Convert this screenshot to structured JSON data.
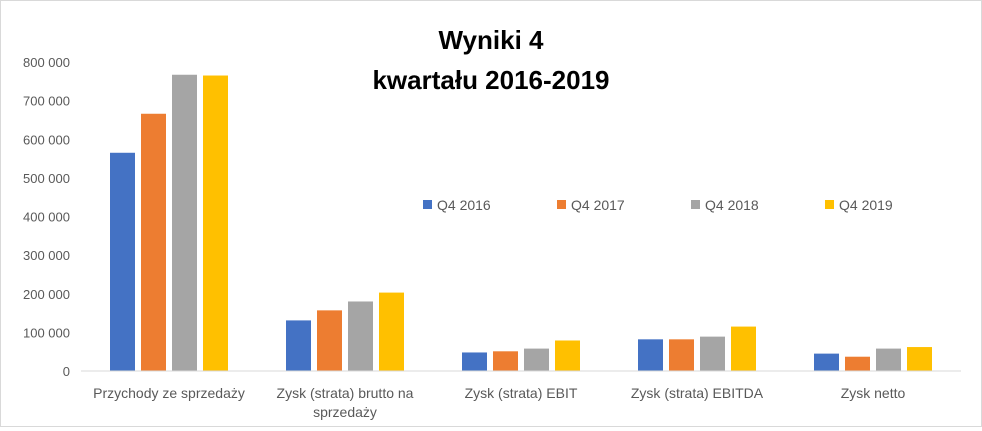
{
  "chart_data": {
    "type": "bar",
    "title_lines": [
      "Wyniki 4",
      "kwartału 2016-2019"
    ],
    "categories": [
      [
        "Przychody ze sprzedaży"
      ],
      [
        "Zysk (strata) brutto na",
        "sprzedaży"
      ],
      [
        "Zysk (strata) EBIT"
      ],
      [
        "Zysk (strata) EBITDA"
      ],
      [
        "Zysk netto"
      ]
    ],
    "series": [
      {
        "name": "Q4 2016",
        "color": "#4472c4",
        "values": [
          565000,
          131000,
          48000,
          82000,
          45000
        ]
      },
      {
        "name": "Q4 2017",
        "color": "#ed7d31",
        "values": [
          666000,
          157000,
          51000,
          82000,
          37000
        ]
      },
      {
        "name": "Q4 2018",
        "color": "#a5a5a5",
        "values": [
          767000,
          180000,
          58000,
          89000,
          58000
        ]
      },
      {
        "name": "Q4 2019",
        "color": "#ffc000",
        "values": [
          765000,
          203000,
          79000,
          115000,
          62000
        ]
      }
    ],
    "ylim": [
      0,
      800000
    ],
    "yticks": [
      0,
      100000,
      200000,
      300000,
      400000,
      500000,
      600000,
      700000,
      800000
    ],
    "ytick_labels": [
      "0",
      "100 000",
      "200 000",
      "300 000",
      "400 000",
      "500 000",
      "600 000",
      "700 000",
      "800 000"
    ],
    "grid": false,
    "legend_position": "inside-right"
  }
}
